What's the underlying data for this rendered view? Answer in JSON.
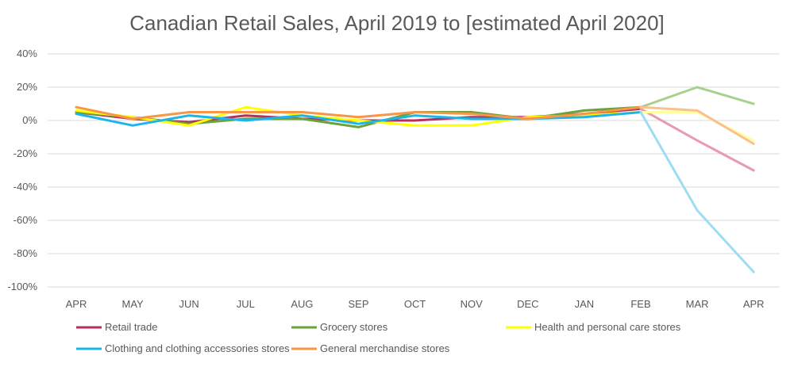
{
  "chart_data": {
    "type": "line",
    "title": "Canadian Retail Sales, April 2019 to [estimated April 2020]",
    "xlabel": "",
    "ylabel": "",
    "categories": [
      "APR",
      "MAY",
      "JUN",
      "JUL",
      "AUG",
      "SEP",
      "OCT",
      "NOV",
      "DEC",
      "JAN",
      "FEB",
      "MAR",
      "APR"
    ],
    "ylim": [
      -100,
      40
    ],
    "ytick_values": [
      40,
      20,
      0,
      -20,
      -40,
      -60,
      -80,
      -100
    ],
    "ytick_labels": [
      "40%",
      "20%",
      "0%",
      "-20%",
      "-40%",
      "-60%",
      "-80%",
      "-100%"
    ],
    "grid": true,
    "legend_position": "bottom",
    "estimated_from_index": 10,
    "series": [
      {
        "name": "Retail trade",
        "color": "#B5305F",
        "est_color": "#E89AB0",
        "values": [
          5,
          1,
          -1,
          3,
          1,
          0,
          0,
          2,
          2,
          4,
          7,
          -12,
          -30
        ]
      },
      {
        "name": "Grocery stores",
        "color": "#6BA23A",
        "est_color": "#A9D18E",
        "values": [
          5,
          2,
          -2,
          1,
          1,
          -4,
          5,
          5,
          1,
          6,
          8,
          20,
          10
        ]
      },
      {
        "name": "Health and personal care stores",
        "color": "#FFFF00",
        "est_color": "#FFFFA0",
        "values": [
          6,
          2,
          -3,
          8,
          3,
          0,
          -3,
          -3,
          2,
          3,
          5,
          5,
          -12
        ]
      },
      {
        "name": "Clothing and clothing accessories stores",
        "color": "#1EB4EA",
        "est_color": "#9EDCF5",
        "values": [
          4,
          -3,
          3,
          0,
          3,
          -2,
          3,
          1,
          1,
          2,
          5,
          -54,
          -91
        ]
      },
      {
        "name": "General merchandise stores",
        "color": "#F79646",
        "est_color": "#FAC090",
        "values": [
          8,
          1,
          5,
          5,
          5,
          2,
          5,
          4,
          1,
          4,
          8,
          6,
          -14
        ]
      }
    ]
  }
}
